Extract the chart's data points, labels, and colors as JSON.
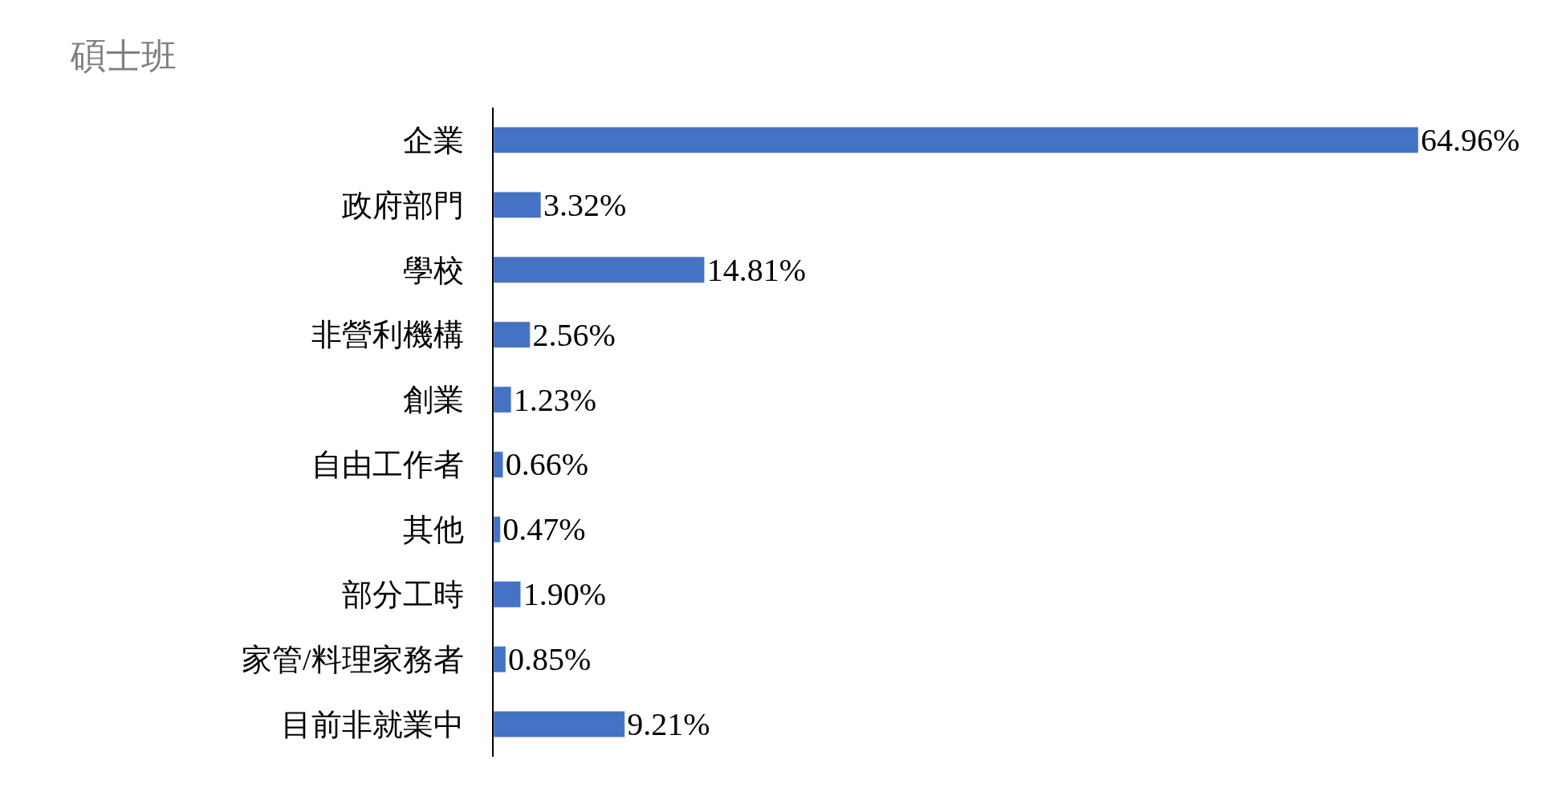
{
  "chart_data": {
    "type": "bar",
    "orientation": "horizontal",
    "title": "碩士班",
    "categories": [
      "企業",
      "政府部門",
      "學校",
      "非營利機構",
      "創業",
      "自由工作者",
      "其他",
      "部分工時",
      "家管/料理家務者",
      "目前非就業中"
    ],
    "values": [
      64.96,
      3.32,
      14.81,
      2.56,
      1.23,
      0.66,
      0.47,
      1.9,
      0.85,
      9.21
    ],
    "value_labels": [
      "64.96%",
      "3.32%",
      "14.81%",
      "2.56%",
      "1.23%",
      "0.66%",
      "0.47%",
      "1.90%",
      "0.85%",
      "9.21%"
    ],
    "color": "#4472c4",
    "legend": false,
    "tick_labels": "y"
  }
}
